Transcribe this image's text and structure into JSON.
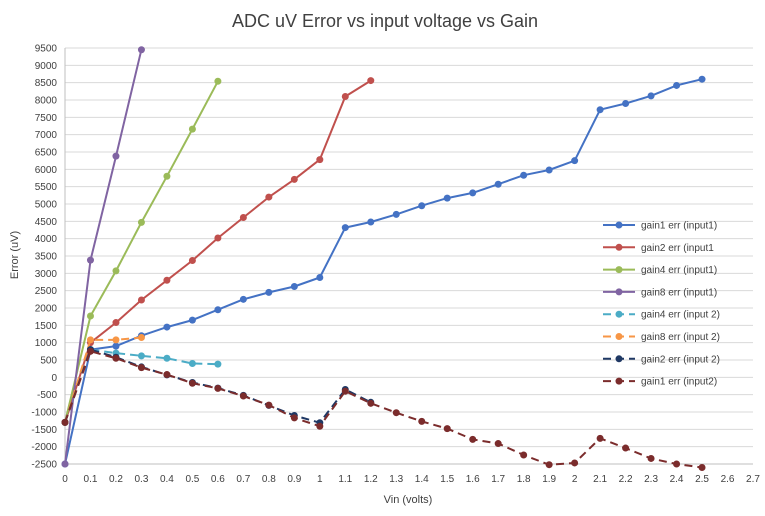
{
  "chart_data": {
    "type": "line",
    "title": "ADC uV Error vs input voltage vs Gain",
    "xlabel": "Vin (volts)",
    "ylabel": "Error (uV)",
    "xlim": [
      0,
      2.7
    ],
    "ylim": [
      -2500,
      9500
    ],
    "xticks": [
      "0",
      "0.1",
      "0.2",
      "0.3",
      "0.4",
      "0.5",
      "0.6",
      "0.7",
      "0.8",
      "0.9",
      "1",
      "1.1",
      "1.2",
      "1.3",
      "1.4",
      "1.5",
      "1.6",
      "1.7",
      "1.8",
      "1.9",
      "2",
      "2.1",
      "2.2",
      "2.3",
      "2.4",
      "2.5",
      "2.6",
      "2.7"
    ],
    "yticks": [
      "-2500",
      "-2000",
      "-1500",
      "-1000",
      "-500",
      "0",
      "500",
      "1000",
      "1500",
      "2000",
      "2500",
      "3000",
      "3500",
      "4000",
      "4500",
      "5000",
      "5500",
      "6000",
      "6500",
      "7000",
      "7500",
      "8000",
      "8500",
      "9000",
      "9500"
    ],
    "grid": "horizontal",
    "legend_position": "right",
    "series": [
      {
        "name": "gain1 err (input1)",
        "color": "#4472C4",
        "dash": false,
        "x": [
          0,
          0.1,
          0.2,
          0.3,
          0.4,
          0.5,
          0.6,
          0.7,
          0.8,
          0.9,
          1.0,
          1.1,
          1.2,
          1.3,
          1.4,
          1.5,
          1.6,
          1.7,
          1.8,
          1.9,
          2.0,
          2.1,
          2.2,
          2.3,
          2.4,
          2.5
        ],
        "y": [
          -2500,
          800,
          900,
          1200,
          1450,
          1650,
          1950,
          2250,
          2450,
          2620,
          2880,
          4320,
          4480,
          4700,
          4950,
          5170,
          5320,
          5570,
          5830,
          5980,
          6250,
          7720,
          7900,
          8120,
          8420,
          8600
        ]
      },
      {
        "name": "gain2 err (input1",
        "color": "#C0504D",
        "dash": false,
        "x": [
          0,
          0.1,
          0.2,
          0.3,
          0.4,
          0.5,
          0.6,
          0.7,
          0.8,
          0.9,
          1.0,
          1.1,
          1.2
        ],
        "y": [
          -1300,
          1000,
          1580,
          2230,
          2800,
          3370,
          4020,
          4610,
          5200,
          5710,
          6280,
          8100,
          8560
        ]
      },
      {
        "name": "gain4 err (input1)",
        "color": "#9BBB59",
        "dash": false,
        "x": [
          0,
          0.1,
          0.2,
          0.3,
          0.4,
          0.5,
          0.6
        ],
        "y": [
          -1300,
          1770,
          3070,
          4470,
          5800,
          7160,
          8540
        ]
      },
      {
        "name": "gain8 err (input1)",
        "color": "#8064A2",
        "dash": false,
        "x": [
          0,
          0.1,
          0.2,
          0.3
        ],
        "y": [
          -2500,
          3380,
          6380,
          9450
        ]
      },
      {
        "name": "gain4 err (input 2)",
        "color": "#4BACC6",
        "dash": true,
        "x": [
          0,
          0.1,
          0.2,
          0.3,
          0.4,
          0.5,
          0.6
        ],
        "y": [
          -1300,
          800,
          700,
          620,
          550,
          400,
          380
        ]
      },
      {
        "name": "gain8 err (input 2)",
        "color": "#F79646",
        "dash": true,
        "x": [
          0,
          0.1,
          0.2,
          0.3
        ],
        "y": [
          -1300,
          1080,
          1080,
          1150
        ]
      },
      {
        "name": "gain2 err (input 2)",
        "color": "#1F3864",
        "dash": true,
        "x": [
          0,
          0.1,
          0.2,
          0.3,
          0.4,
          0.5,
          0.6,
          0.7,
          0.8,
          0.9,
          1.0,
          1.1,
          1.2
        ],
        "y": [
          -1300,
          800,
          580,
          300,
          70,
          -150,
          -310,
          -520,
          -810,
          -1100,
          -1310,
          -350,
          -720
        ]
      },
      {
        "name": "gain1 err (input2)",
        "color": "#7B2C2C",
        "dash": true,
        "x": [
          0,
          0.1,
          0.2,
          0.3,
          0.4,
          0.5,
          0.6,
          0.7,
          0.8,
          0.9,
          1.0,
          1.1,
          1.2,
          1.3,
          1.4,
          1.5,
          1.6,
          1.7,
          1.8,
          1.9,
          2.0,
          2.1,
          2.2,
          2.3,
          2.4,
          2.5
        ],
        "y": [
          -1300,
          750,
          550,
          280,
          80,
          -170,
          -320,
          -540,
          -800,
          -1170,
          -1410,
          -400,
          -750,
          -1020,
          -1270,
          -1480,
          -1790,
          -1910,
          -2240,
          -2520,
          -2470,
          -1760,
          -2040,
          -2340,
          -2500,
          -2600
        ]
      }
    ]
  }
}
